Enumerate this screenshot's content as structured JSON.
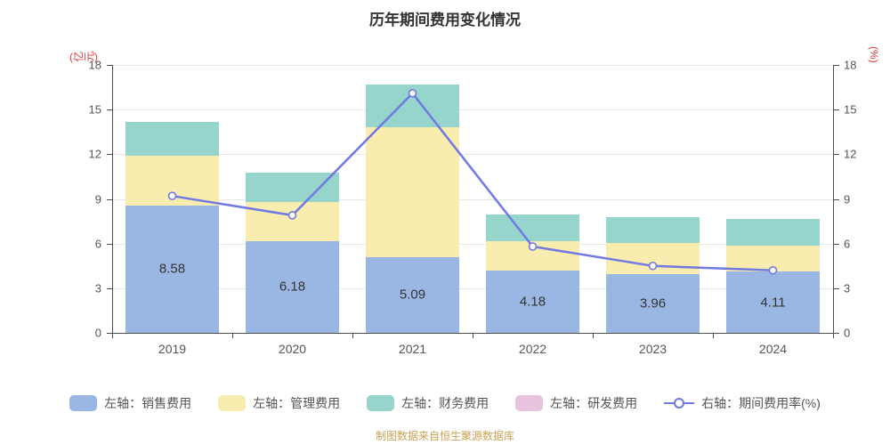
{
  "title": "历年期间费用变化情况",
  "footer": "制图数据来自恒生聚源数据库",
  "colors": {
    "axis_line": "#4d4d4d",
    "grid": "#e8e8e8",
    "tick_text": "#555555",
    "unit_text_red": "#e23b3b",
    "title_text": "#333333",
    "footer_gold": "#c9a152",
    "bar_value_label": "#333333"
  },
  "axes": {
    "left": {
      "unit": "(亿元)",
      "ticks": [
        0,
        3,
        6,
        9,
        12,
        15,
        18
      ],
      "max": 18
    },
    "right": {
      "unit": "(%)",
      "ticks": [
        0,
        3,
        6,
        9,
        12,
        15,
        18
      ],
      "max": 18
    }
  },
  "chart_data": {
    "type": "bar",
    "subtype": "stacked-bars-with-right-axis-line",
    "title": "历年期间费用变化情况",
    "categories": [
      "2019",
      "2020",
      "2021",
      "2022",
      "2023",
      "2024"
    ],
    "series": [
      {
        "name": "左轴：销售费用",
        "type": "bar",
        "axis": "left",
        "color": "#9ab7e3",
        "values": [
          8.58,
          6.18,
          5.09,
          4.18,
          3.96,
          4.11
        ]
      },
      {
        "name": "左轴：管理费用",
        "type": "bar",
        "axis": "left",
        "color": "#f8ecae",
        "values": [
          3.3,
          2.6,
          8.7,
          2.0,
          2.1,
          1.75
        ]
      },
      {
        "name": "左轴：财务费用",
        "type": "bar",
        "axis": "left",
        "color": "#96d5cb",
        "values": [
          2.3,
          2.0,
          2.9,
          1.8,
          1.7,
          1.8
        ]
      },
      {
        "name": "左轴：研发费用",
        "type": "bar",
        "axis": "left",
        "color": "#e7c3dd",
        "values": [
          0,
          0,
          0,
          0,
          0,
          0
        ]
      },
      {
        "name": "右轴：期间费用率(%)",
        "type": "line",
        "axis": "right",
        "color": "#7179e2",
        "values": [
          9.2,
          7.9,
          16.1,
          5.8,
          4.5,
          4.2
        ]
      }
    ],
    "bar_value_labels": [
      "8.58",
      "6.18",
      "5.09",
      "4.18",
      "3.96",
      "4.11"
    ],
    "ylim_left": [
      0,
      18
    ],
    "ylim_right": [
      0,
      18
    ],
    "grid": true,
    "legend_position": "bottom"
  },
  "legend": {
    "items": [
      {
        "label": "左轴：销售费用",
        "color": "#9ab7e3",
        "marker": "rounded-rect"
      },
      {
        "label": "左轴：管理费用",
        "color": "#f8ecae",
        "marker": "rounded-rect"
      },
      {
        "label": "左轴：财务费用",
        "color": "#96d5cb",
        "marker": "rounded-rect"
      },
      {
        "label": "左轴：研发费用",
        "color": "#e7c3dd",
        "marker": "rounded-rect"
      },
      {
        "label": "右轴：期间费用率(%)",
        "color": "#7179e2",
        "marker": "line-circle"
      }
    ]
  }
}
